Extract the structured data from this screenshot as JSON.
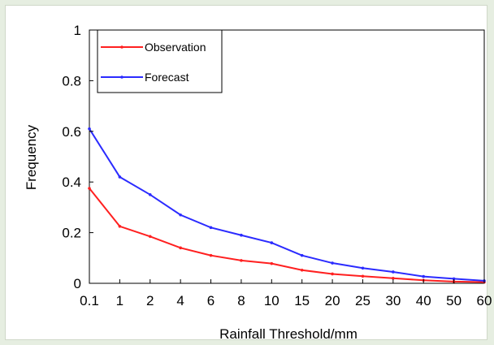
{
  "chart_data": {
    "type": "line",
    "title": "",
    "xlabel": "Rainfall Threshold/mm",
    "ylabel": "Frequency",
    "categories": [
      "0.1",
      "1",
      "2",
      "4",
      "6",
      "8",
      "10",
      "15",
      "20",
      "25",
      "30",
      "40",
      "50",
      "60"
    ],
    "ylim": [
      0,
      1
    ],
    "yticks": [
      "0",
      "0.2",
      "0.4",
      "0.6",
      "0.8",
      "1"
    ],
    "grid": false,
    "legend_position": "top-left",
    "series": [
      {
        "name": "Observation",
        "color": "#ff2020",
        "values": [
          0.375,
          0.225,
          0.185,
          0.14,
          0.11,
          0.09,
          0.078,
          0.052,
          0.037,
          0.028,
          0.02,
          0.012,
          0.007,
          0.005
        ]
      },
      {
        "name": "Forecast",
        "color": "#2b2bff",
        "values": [
          0.61,
          0.42,
          0.35,
          0.27,
          0.22,
          0.19,
          0.16,
          0.11,
          0.08,
          0.06,
          0.045,
          0.027,
          0.018,
          0.01
        ]
      }
    ]
  }
}
